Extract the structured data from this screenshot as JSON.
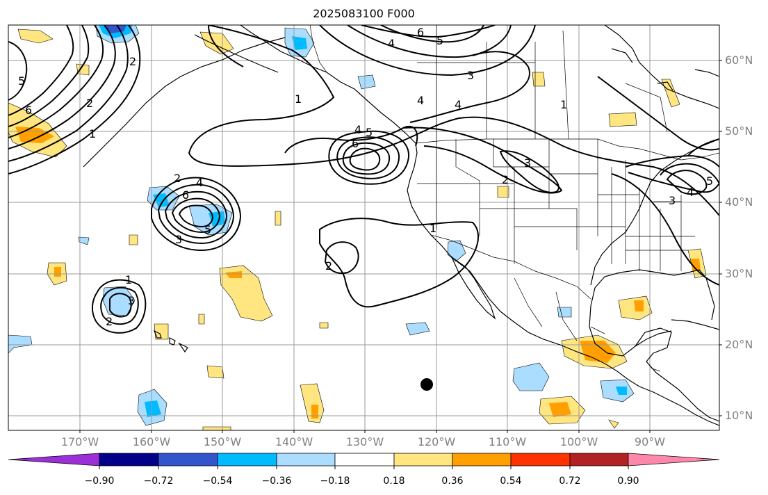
{
  "title": "2025083100 F000",
  "lat_labels": [
    "60°N",
    "50°N",
    "40°N",
    "30°N",
    "20°N",
    "10°N"
  ],
  "lon_labels": [
    "170°W",
    "160°W",
    "150°W",
    "140°W",
    "130°W",
    "120°W",
    "110°W",
    "100°W",
    "90°W"
  ],
  "colorbar": {
    "ticks": [
      "−0.90",
      "−0.72",
      "−0.54",
      "−0.36",
      "−0.18",
      "0.18",
      "0.36",
      "0.54",
      "0.72",
      "0.90"
    ],
    "colors": [
      "#9b30d9",
      "#000088",
      "#3355cc",
      "#00bbff",
      "#aaddff",
      "#ffffff",
      "#ffe680",
      "#ffa000",
      "#ff3300",
      "#b22222",
      "#ff88aa"
    ]
  },
  "contour_labels": [
    "6",
    "4",
    "5",
    "3",
    "4",
    "1",
    "5",
    "6",
    "1",
    "2",
    "4",
    "5",
    "6",
    "2",
    "4",
    "6",
    "5",
    "3",
    "1",
    "2",
    "1",
    "3",
    "2",
    "3",
    "2",
    "1",
    "2",
    "3",
    "4",
    "5",
    "4"
  ],
  "map_features": [
    "coastlines",
    "us-state-borders",
    "country-borders",
    "graticule",
    "contour-lines",
    "shaded-anomaly"
  ],
  "marker": "black-dot"
}
